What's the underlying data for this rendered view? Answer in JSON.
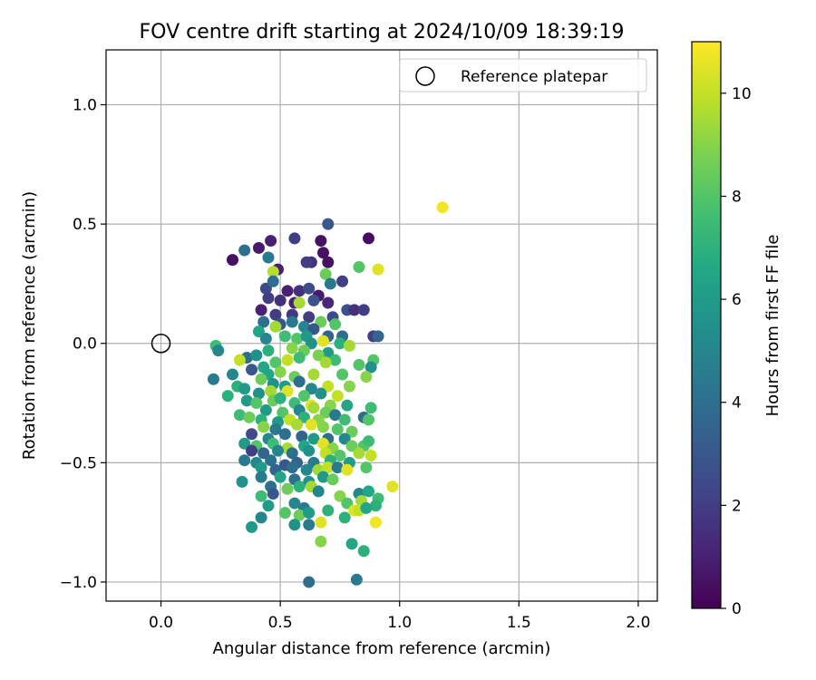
{
  "chart_data": {
    "type": "scatter",
    "title": "FOV centre drift starting at 2024/10/09 18:39:19",
    "xlabel": "Angular distance from reference (arcmin)",
    "ylabel": "Rotation from reference (arcmin)",
    "xlim": [
      -0.23,
      2.08
    ],
    "ylim": [
      -1.08,
      1.23
    ],
    "xticks": [
      0.0,
      0.5,
      1.0,
      1.5,
      2.0
    ],
    "xtick_labels": [
      "0.0",
      "0.5",
      "1.0",
      "1.5",
      "2.0"
    ],
    "yticks": [
      -1.0,
      -0.5,
      0.0,
      0.5,
      1.0
    ],
    "ytick_labels": [
      "−1.0",
      "−0.5",
      "0.0",
      "0.5",
      "1.0"
    ],
    "grid": true,
    "legend": {
      "placement": "top-right",
      "entries": [
        "Reference platepar"
      ]
    },
    "reference_point": {
      "name": "Reference platepar",
      "x": 0.0,
      "y": 0.0
    },
    "colorbar": {
      "label": "Hours from first FF file",
      "colormap": "viridis",
      "range": [
        0,
        11
      ],
      "ticks": [
        0,
        2,
        4,
        6,
        8,
        10
      ],
      "tick_labels": [
        "0",
        "2",
        "4",
        "6",
        "8",
        "10"
      ]
    },
    "series": [
      {
        "note_color_value": "hours",
        "points": [
          [
            0.3,
            0.35,
            0.5
          ],
          [
            0.41,
            0.4,
            0.8
          ],
          [
            0.46,
            0.43,
            1.0
          ],
          [
            0.56,
            0.44,
            2.0
          ],
          [
            0.67,
            0.43,
            0.5
          ],
          [
            0.7,
            0.5,
            3.0
          ],
          [
            0.68,
            0.38,
            0.5
          ],
          [
            0.7,
            0.34,
            0.5
          ],
          [
            0.87,
            0.44,
            0.4
          ],
          [
            0.35,
            0.39,
            4.0
          ],
          [
            0.45,
            0.36,
            4.5
          ],
          [
            0.49,
            0.31,
            1.0
          ],
          [
            0.63,
            0.34,
            1.5
          ],
          [
            0.61,
            0.34,
            2.0
          ],
          [
            0.47,
            0.3,
            9.8
          ],
          [
            0.69,
            0.29,
            8.5
          ],
          [
            0.83,
            0.32,
            8.0
          ],
          [
            0.91,
            0.31,
            10.5
          ],
          [
            1.18,
            0.57,
            10.8
          ],
          [
            0.44,
            0.23,
            2.5
          ],
          [
            0.47,
            0.26,
            4.0
          ],
          [
            0.53,
            0.22,
            1.0
          ],
          [
            0.58,
            0.22,
            1.5
          ],
          [
            0.62,
            0.23,
            2.5
          ],
          [
            0.66,
            0.2,
            0.8
          ],
          [
            0.76,
            0.26,
            2.0
          ],
          [
            0.71,
            0.25,
            4.5
          ],
          [
            0.45,
            0.19,
            2.0
          ],
          [
            0.5,
            0.18,
            1.5
          ],
          [
            0.56,
            0.17,
            1.0
          ],
          [
            0.64,
            0.18,
            2.8
          ],
          [
            0.7,
            0.17,
            1.2
          ],
          [
            0.58,
            0.17,
            9.5
          ],
          [
            0.42,
            0.14,
            1.0
          ],
          [
            0.48,
            0.12,
            2.0
          ],
          [
            0.55,
            0.12,
            1.8
          ],
          [
            0.62,
            0.11,
            2.0
          ],
          [
            0.72,
            0.11,
            2.5
          ],
          [
            0.78,
            0.14,
            2.8
          ],
          [
            0.81,
            0.14,
            1.5
          ],
          [
            0.85,
            0.14,
            2.0
          ],
          [
            0.43,
            0.09,
            4.0
          ],
          [
            0.5,
            0.08,
            3.0
          ],
          [
            0.55,
            0.09,
            4.5
          ],
          [
            0.6,
            0.07,
            5.0
          ],
          [
            0.67,
            0.09,
            8.5
          ],
          [
            0.73,
            0.08,
            8.0
          ],
          [
            0.48,
            0.07,
            9.5
          ],
          [
            0.64,
            0.06,
            3.0
          ],
          [
            0.7,
            0.03,
            3.5
          ],
          [
            0.76,
            0.03,
            4.0
          ],
          [
            0.89,
            0.03,
            2.0
          ],
          [
            0.91,
            0.03,
            3.5
          ],
          [
            0.41,
            0.05,
            6.5
          ],
          [
            0.44,
            0.02,
            5.0
          ],
          [
            0.52,
            0.03,
            7.5
          ],
          [
            0.57,
            0.02,
            8.0
          ],
          [
            0.61,
            0.03,
            6.0
          ],
          [
            0.68,
            0.01,
            10.5
          ],
          [
            0.63,
            0.0,
            5.5
          ],
          [
            0.75,
            0.0,
            7.0
          ],
          [
            0.23,
            -0.01,
            7.5
          ],
          [
            0.24,
            -0.03,
            5.0
          ],
          [
            0.36,
            -0.06,
            4.0
          ],
          [
            0.4,
            -0.05,
            5.5
          ],
          [
            0.45,
            -0.03,
            7.0
          ],
          [
            0.55,
            -0.02,
            9.0
          ],
          [
            0.6,
            -0.03,
            8.5
          ],
          [
            0.7,
            -0.04,
            6.0
          ],
          [
            0.79,
            -0.01,
            9.5
          ],
          [
            0.33,
            -0.07,
            10.0
          ],
          [
            0.43,
            -0.1,
            6.5
          ],
          [
            0.48,
            -0.08,
            8.0
          ],
          [
            0.53,
            -0.07,
            10.0
          ],
          [
            0.58,
            -0.06,
            7.5
          ],
          [
            0.66,
            -0.05,
            8.8
          ],
          [
            0.73,
            -0.07,
            7.5
          ],
          [
            0.83,
            -0.09,
            8.0
          ],
          [
            0.89,
            -0.07,
            8.0
          ],
          [
            0.88,
            -0.1,
            5.5
          ],
          [
            0.22,
            -0.15,
            4.5
          ],
          [
            0.3,
            -0.13,
            5.0
          ],
          [
            0.38,
            -0.11,
            3.0
          ],
          [
            0.45,
            -0.13,
            6.5
          ],
          [
            0.5,
            -0.12,
            9.0
          ],
          [
            0.56,
            -0.14,
            8.5
          ],
          [
            0.64,
            -0.13,
            9.5
          ],
          [
            0.69,
            -0.08,
            9.5
          ],
          [
            0.76,
            -0.13,
            8.0
          ],
          [
            0.86,
            -0.14,
            9.0
          ],
          [
            0.42,
            -0.15,
            8.5
          ],
          [
            0.47,
            -0.17,
            5.5
          ],
          [
            0.52,
            -0.18,
            6.0
          ],
          [
            0.58,
            -0.16,
            4.0
          ],
          [
            0.63,
            -0.19,
            5.0
          ],
          [
            0.7,
            -0.18,
            10.0
          ],
          [
            0.79,
            -0.18,
            9.0
          ],
          [
            0.32,
            -0.18,
            7.0
          ],
          [
            0.35,
            -0.19,
            6.0
          ],
          [
            0.41,
            -0.21,
            5.5
          ],
          [
            0.46,
            -0.2,
            9.5
          ],
          [
            0.53,
            -0.2,
            10.5
          ],
          [
            0.6,
            -0.22,
            8.0
          ],
          [
            0.67,
            -0.21,
            5.5
          ],
          [
            0.74,
            -0.22,
            10.0
          ],
          [
            0.28,
            -0.22,
            7.0
          ],
          [
            0.36,
            -0.24,
            6.0
          ],
          [
            0.4,
            -0.25,
            8.0
          ],
          [
            0.47,
            -0.24,
            8.5
          ],
          [
            0.5,
            -0.23,
            7.0
          ],
          [
            0.56,
            -0.25,
            7.5
          ],
          [
            0.63,
            -0.26,
            10.5
          ],
          [
            0.71,
            -0.26,
            9.0
          ],
          [
            0.78,
            -0.26,
            6.5
          ],
          [
            0.88,
            -0.27,
            7.5
          ],
          [
            0.44,
            -0.28,
            6.0
          ],
          [
            0.51,
            -0.29,
            8.0
          ],
          [
            0.58,
            -0.28,
            5.0
          ],
          [
            0.64,
            -0.27,
            9.5
          ],
          [
            0.69,
            -0.29,
            8.5
          ],
          [
            0.73,
            -0.3,
            4.5
          ],
          [
            0.33,
            -0.3,
            7.5
          ],
          [
            0.37,
            -0.31,
            8.5
          ],
          [
            0.42,
            -0.32,
            7.0
          ],
          [
            0.49,
            -0.33,
            6.0
          ],
          [
            0.54,
            -0.32,
            10.0
          ],
          [
            0.6,
            -0.31,
            7.0
          ],
          [
            0.66,
            -0.32,
            9.0
          ],
          [
            0.77,
            -0.32,
            7.5
          ],
          [
            0.85,
            -0.31,
            4.0
          ],
          [
            0.87,
            -0.32,
            8.0
          ],
          [
            0.43,
            -0.35,
            9.0
          ],
          [
            0.48,
            -0.36,
            4.5
          ],
          [
            0.57,
            -0.34,
            9.5
          ],
          [
            0.63,
            -0.34,
            10.5
          ],
          [
            0.68,
            -0.35,
            9.0
          ],
          [
            0.74,
            -0.36,
            8.0
          ],
          [
            0.8,
            -0.37,
            8.5
          ],
          [
            0.38,
            -0.38,
            2.5
          ],
          [
            0.45,
            -0.4,
            5.0
          ],
          [
            0.52,
            -0.38,
            4.0
          ],
          [
            0.59,
            -0.39,
            3.5
          ],
          [
            0.64,
            -0.4,
            6.0
          ],
          [
            0.7,
            -0.4,
            4.0
          ],
          [
            0.77,
            -0.4,
            5.0
          ],
          [
            0.35,
            -0.42,
            6.0
          ],
          [
            0.4,
            -0.43,
            8.0
          ],
          [
            0.47,
            -0.42,
            7.5
          ],
          [
            0.53,
            -0.44,
            9.5
          ],
          [
            0.6,
            -0.43,
            6.5
          ],
          [
            0.68,
            -0.42,
            10.5
          ],
          [
            0.72,
            -0.44,
            9.0
          ],
          [
            0.8,
            -0.43,
            8.5
          ],
          [
            0.85,
            -0.43,
            8.0
          ],
          [
            0.87,
            -0.41,
            7.5
          ],
          [
            0.38,
            -0.45,
            2.0
          ],
          [
            0.43,
            -0.46,
            3.5
          ],
          [
            0.49,
            -0.45,
            5.0
          ],
          [
            0.55,
            -0.46,
            4.0
          ],
          [
            0.62,
            -0.45,
            5.5
          ],
          [
            0.69,
            -0.46,
            10.0
          ],
          [
            0.75,
            -0.47,
            8.0
          ],
          [
            0.83,
            -0.46,
            9.5
          ],
          [
            0.88,
            -0.47,
            10.0
          ],
          [
            0.35,
            -0.49,
            4.5
          ],
          [
            0.4,
            -0.5,
            5.0
          ],
          [
            0.46,
            -0.49,
            4.0
          ],
          [
            0.52,
            -0.51,
            3.0
          ],
          [
            0.57,
            -0.5,
            3.5
          ],
          [
            0.64,
            -0.5,
            4.5
          ],
          [
            0.71,
            -0.49,
            7.0
          ],
          [
            0.79,
            -0.5,
            6.0
          ],
          [
            0.42,
            -0.52,
            6.0
          ],
          [
            0.48,
            -0.53,
            3.5
          ],
          [
            0.55,
            -0.52,
            4.0
          ],
          [
            0.61,
            -0.53,
            5.0
          ],
          [
            0.66,
            -0.53,
            9.5
          ],
          [
            0.7,
            -0.52,
            10.0
          ],
          [
            0.74,
            -0.52,
            4.5
          ],
          [
            0.78,
            -0.53,
            10.5
          ],
          [
            0.86,
            -0.52,
            8.0
          ],
          [
            0.34,
            -0.58,
            5.5
          ],
          [
            0.42,
            -0.56,
            4.5
          ],
          [
            0.5,
            -0.56,
            6.5
          ],
          [
            0.56,
            -0.57,
            4.0
          ],
          [
            0.62,
            -0.58,
            5.5
          ],
          [
            0.68,
            -0.56,
            6.0
          ],
          [
            0.72,
            -0.57,
            8.5
          ],
          [
            0.46,
            -0.6,
            4.0
          ],
          [
            0.53,
            -0.61,
            8.5
          ],
          [
            0.58,
            -0.6,
            7.0
          ],
          [
            0.63,
            -0.6,
            9.5
          ],
          [
            0.66,
            -0.62,
            5.0
          ],
          [
            0.97,
            -0.6,
            10.5
          ],
          [
            0.47,
            -0.63,
            3.0
          ],
          [
            0.42,
            -0.64,
            7.5
          ],
          [
            0.75,
            -0.64,
            9.0
          ],
          [
            0.83,
            -0.63,
            5.0
          ],
          [
            0.87,
            -0.62,
            6.5
          ],
          [
            0.91,
            -0.65,
            7.5
          ],
          [
            0.45,
            -0.68,
            6.0
          ],
          [
            0.56,
            -0.67,
            5.0
          ],
          [
            0.6,
            -0.69,
            4.5
          ],
          [
            0.7,
            -0.7,
            7.0
          ],
          [
            0.78,
            -0.67,
            8.0
          ],
          [
            0.84,
            -0.66,
            9.5
          ],
          [
            0.9,
            -0.68,
            7.0
          ],
          [
            0.42,
            -0.73,
            5.0
          ],
          [
            0.52,
            -0.71,
            8.0
          ],
          [
            0.58,
            -0.72,
            8.5
          ],
          [
            0.62,
            -0.71,
            6.0
          ],
          [
            0.77,
            -0.73,
            7.0
          ],
          [
            0.81,
            -0.7,
            10.5
          ],
          [
            0.83,
            -0.7,
            10.0
          ],
          [
            0.86,
            -0.69,
            6.5
          ],
          [
            0.38,
            -0.77,
            6.0
          ],
          [
            0.56,
            -0.76,
            5.5
          ],
          [
            0.62,
            -0.76,
            4.5
          ],
          [
            0.67,
            -0.75,
            10.5
          ],
          [
            0.9,
            -0.75,
            10.8
          ],
          [
            0.67,
            -0.83,
            9.0
          ],
          [
            0.8,
            -0.84,
            6.5
          ],
          [
            0.85,
            -0.87,
            7.0
          ],
          [
            0.62,
            -1.0,
            4.0
          ],
          [
            0.82,
            -0.99,
            4.5
          ]
        ]
      }
    ]
  }
}
